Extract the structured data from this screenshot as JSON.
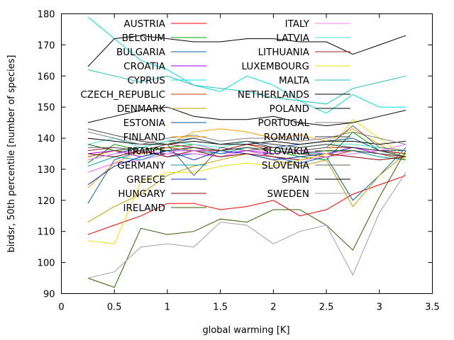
{
  "chart_data": {
    "type": "line",
    "xlabel": "global warming [K]",
    "ylabel": "birdsr, 50th percentile [number of species]",
    "xlim": [
      0,
      3.5
    ],
    "ylim": [
      90,
      180
    ],
    "xticks": [
      "0",
      "0.5",
      "1",
      "1.5",
      "2",
      "2.5",
      "3",
      "3.5"
    ],
    "yticks": [
      "90",
      "100",
      "110",
      "120",
      "130",
      "140",
      "150",
      "160",
      "170",
      "180"
    ],
    "x": [
      0.25,
      0.5,
      0.75,
      1.0,
      1.25,
      1.5,
      1.75,
      2.0,
      2.25,
      2.5,
      2.75,
      3.0,
      3.25
    ],
    "legend_position": "top",
    "series": [
      {
        "name": "AUSTRIA",
        "color": "#ff0000",
        "values": [
          109,
          112,
          115,
          119,
          119,
          117,
          118,
          120,
          115,
          117,
          122,
          125,
          128
        ]
      },
      {
        "name": "BELGIUM",
        "color": "#00a000",
        "values": [
          132,
          138,
          136,
          137,
          138,
          136,
          137,
          136,
          134,
          133,
          142,
          136,
          134
        ]
      },
      {
        "name": "BULGARIA",
        "color": "#0060b0",
        "values": [
          119,
          133,
          136,
          134,
          135,
          134,
          136,
          134,
          132,
          134,
          120,
          128,
          137
        ]
      },
      {
        "name": "CROATIA",
        "color": "#a000ff",
        "values": [
          135,
          136,
          134,
          136,
          137,
          135,
          136,
          135,
          136,
          135,
          137,
          135,
          134
        ]
      },
      {
        "name": "CYPRUS",
        "color": "#00e0e0",
        "values": [
          179,
          172,
          165,
          162,
          157,
          155,
          160,
          157,
          152,
          148,
          154,
          150,
          150
        ]
      },
      {
        "name": "CZECH_REPUBLIC",
        "color": "#c04000",
        "values": [
          134,
          136,
          135,
          137,
          136,
          136,
          138,
          136,
          135,
          134,
          136,
          135,
          133
        ]
      },
      {
        "name": "DENMARK",
        "color": "#c0a000",
        "values": [
          113,
          118,
          122,
          128,
          131,
          133,
          135,
          133,
          131,
          133,
          118,
          128,
          135
        ]
      },
      {
        "name": "ESTONIA",
        "color": "#0050a0",
        "values": [
          133,
          135,
          137,
          139,
          140,
          138,
          139,
          137,
          138,
          139,
          140,
          136,
          136
        ]
      },
      {
        "name": "FINLAND",
        "color": "#ffa000",
        "values": [
          124,
          132,
          136,
          138,
          142,
          143,
          142,
          140,
          141,
          139,
          143,
          138,
          133
        ]
      },
      {
        "name": "FRANCE",
        "color": "#ff66ff",
        "values": [
          129,
          132,
          133,
          135,
          135,
          134,
          136,
          134,
          133,
          134,
          135,
          136,
          138
        ]
      },
      {
        "name": "GERMANY",
        "color": "#00a0a0",
        "values": [
          131,
          134,
          133,
          136,
          136,
          135,
          137,
          136,
          135,
          135,
          136,
          134,
          133
        ]
      },
      {
        "name": "GREECE",
        "color": "#1030c0",
        "values": [
          125,
          131,
          134,
          136,
          133,
          136,
          135,
          133,
          134,
          135,
          137,
          136,
          135
        ]
      },
      {
        "name": "HUNGARY",
        "color": "#800000",
        "values": [
          135,
          134,
          136,
          134,
          136,
          134,
          135,
          134,
          133,
          135,
          134,
          133,
          134
        ]
      },
      {
        "name": "IRELAND",
        "color": "#306000",
        "values": [
          95,
          92,
          111,
          109,
          110,
          114,
          113,
          117,
          117,
          112,
          104,
          121,
          136
        ]
      },
      {
        "name": "ITALY",
        "color": "#ff80ff",
        "values": [
          133,
          135,
          136,
          135,
          138,
          136,
          137,
          135,
          136,
          135,
          136,
          135,
          134
        ]
      },
      {
        "name": "LATVIA",
        "color": "#40e0d0",
        "values": [
          138,
          140,
          137,
          139,
          138,
          137,
          139,
          138,
          137,
          138,
          138,
          137,
          136
        ]
      },
      {
        "name": "LITHUANIA",
        "color": "#a02020",
        "values": [
          136,
          137,
          136,
          138,
          137,
          136,
          138,
          137,
          136,
          137,
          137,
          136,
          135
        ]
      },
      {
        "name": "LUXEMBOURG",
        "color": "#f0e000",
        "values": [
          107,
          106,
          126,
          129,
          129,
          131,
          132,
          131,
          133,
          135,
          146,
          140,
          134
        ]
      },
      {
        "name": "MALTA",
        "color": "#20c0c0",
        "values": [
          162,
          160,
          158,
          160,
          157,
          156,
          155,
          153,
          152,
          151,
          156,
          158,
          160
        ]
      },
      {
        "name": "NETHERLANDS",
        "color": "#000000",
        "values": [
          163,
          172,
          173,
          172,
          171,
          171,
          172,
          172,
          171,
          171,
          167,
          170,
          173
        ]
      },
      {
        "name": "POLAND",
        "color": "#000000",
        "values": [
          140,
          139,
          138,
          138,
          139,
          138,
          138,
          139,
          138,
          139,
          139,
          138,
          139
        ]
      },
      {
        "name": "PORTUGAL",
        "color": "#808080",
        "values": [
          142,
          140,
          138,
          140,
          141,
          139,
          140,
          140,
          139,
          140,
          142,
          140,
          138
        ]
      },
      {
        "name": "ROMANIA",
        "color": "#404040",
        "values": [
          143,
          141,
          139,
          138,
          140,
          138,
          139,
          138,
          137,
          138,
          137,
          136,
          134
        ]
      },
      {
        "name": "SLOVAKIA",
        "color": "#205020",
        "values": [
          138,
          136,
          137,
          136,
          137,
          136,
          137,
          136,
          135,
          136,
          136,
          135,
          134
        ]
      },
      {
        "name": "SLOVENIA",
        "color": "#606060",
        "values": [
          137,
          137,
          136,
          138,
          128,
          137,
          136,
          137,
          136,
          137,
          144,
          137,
          136
        ]
      },
      {
        "name": "SPAIN",
        "color": "#000000",
        "values": [
          145,
          147,
          149,
          150,
          147,
          146,
          146,
          147,
          145,
          144,
          145,
          147,
          149
        ]
      },
      {
        "name": "SWEDEN",
        "color": "#a0a0a0",
        "values": [
          95,
          97,
          105,
          106,
          105,
          113,
          112,
          106,
          110,
          112,
          96,
          116,
          129
        ]
      }
    ]
  }
}
